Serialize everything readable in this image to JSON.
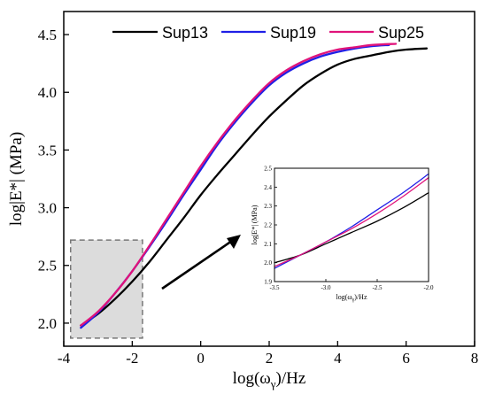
{
  "chart_data": [
    {
      "type": "line",
      "xlabel": "log(ω",
      "xlabel_sub": "γ",
      "xlabel_suffix": ")/Hz",
      "ylabel": "log|E*| (MPa)",
      "xlim": [
        -4,
        8
      ],
      "ylim": [
        1.8,
        4.7
      ],
      "xticks": [
        -4,
        -2,
        0,
        2,
        4,
        6,
        8
      ],
      "xtick_labels": [
        "-4",
        "-2",
        "0",
        "2",
        "4",
        "6",
        "8"
      ],
      "yticks": [
        2.0,
        2.5,
        3.0,
        3.5,
        4.0,
        4.5
      ],
      "ytick_labels": [
        "2.0",
        "2.5",
        "3.0",
        "3.5",
        "4.0",
        "4.5"
      ],
      "grid": false,
      "legend_position": "top",
      "highlight_region": {
        "x": [
          -3.8,
          -1.7
        ],
        "y": [
          1.87,
          2.72
        ]
      },
      "series": [
        {
          "name": "Sup13",
          "color": "#000000",
          "x": [
            -3.5,
            -3,
            -2.5,
            -2,
            -1.5,
            -1,
            -0.5,
            0,
            0.5,
            1,
            1.5,
            2,
            2.5,
            3,
            3.5,
            4,
            4.5,
            5,
            5.5,
            6,
            6.6
          ],
          "y": [
            1.98,
            2.08,
            2.21,
            2.36,
            2.53,
            2.72,
            2.91,
            3.11,
            3.29,
            3.46,
            3.63,
            3.79,
            3.93,
            4.06,
            4.16,
            4.24,
            4.29,
            4.32,
            4.35,
            4.37,
            4.38
          ]
        },
        {
          "name": "Sup19",
          "color": "#1f1fe6",
          "x": [
            -3.5,
            -3,
            -2.5,
            -2,
            -1.5,
            -1,
            -0.5,
            0,
            0.5,
            1,
            1.5,
            2,
            2.5,
            3,
            3.5,
            4,
            4.5,
            5,
            5.5
          ],
          "y": [
            1.96,
            2.09,
            2.26,
            2.45,
            2.66,
            2.88,
            3.11,
            3.33,
            3.55,
            3.74,
            3.91,
            4.06,
            4.17,
            4.25,
            4.31,
            4.35,
            4.38,
            4.4,
            4.41
          ]
        },
        {
          "name": "Sup25",
          "color": "#e0137a",
          "x": [
            -3.5,
            -3,
            -2.5,
            -2,
            -1.5,
            -1,
            -0.5,
            0,
            0.5,
            1,
            1.5,
            2,
            2.5,
            3,
            3.5,
            4,
            4.5,
            5,
            5.7
          ],
          "y": [
            1.98,
            2.1,
            2.26,
            2.45,
            2.67,
            2.9,
            3.13,
            3.36,
            3.57,
            3.76,
            3.93,
            4.08,
            4.19,
            4.27,
            4.33,
            4.37,
            4.39,
            4.41,
            4.42
          ]
        }
      ]
    },
    {
      "type": "line",
      "xlabel": "log(ω",
      "xlabel_sub": "γ",
      "xlabel_suffix": ")/Hz",
      "ylabel": "log|E*| (MPa)",
      "xlim": [
        -3.5,
        -2.0
      ],
      "ylim": [
        1.9,
        2.5
      ],
      "xticks": [
        -3.5,
        -3.0,
        -2.5,
        -2.0
      ],
      "xtick_labels": [
        "-3.5",
        "-3.0",
        "-2.5",
        "-2.0"
      ],
      "yticks": [
        1.9,
        2.0,
        2.1,
        2.2,
        2.3,
        2.4,
        2.5
      ],
      "ytick_labels": [
        "1.9",
        "2.0",
        "2.1",
        "2.2",
        "2.3",
        "2.4",
        "2.5"
      ],
      "grid": false,
      "series": [
        {
          "name": "Sup13",
          "color": "#000000",
          "x": [
            -3.5,
            -3.25,
            -3.0,
            -2.75,
            -2.5,
            -2.25,
            -2.0
          ],
          "y": [
            2.0,
            2.04,
            2.1,
            2.16,
            2.22,
            2.29,
            2.37
          ]
        },
        {
          "name": "Sup19",
          "color": "#1f1fe6",
          "x": [
            -3.5,
            -3.25,
            -3.0,
            -2.75,
            -2.5,
            -2.25,
            -2.0
          ],
          "y": [
            1.97,
            2.04,
            2.11,
            2.19,
            2.28,
            2.37,
            2.47
          ]
        },
        {
          "name": "Sup25",
          "color": "#e0137a",
          "x": [
            -3.5,
            -3.25,
            -3.0,
            -2.75,
            -2.5,
            -2.25,
            -2.0
          ],
          "y": [
            1.98,
            2.04,
            2.11,
            2.18,
            2.26,
            2.35,
            2.45
          ]
        }
      ]
    }
  ]
}
